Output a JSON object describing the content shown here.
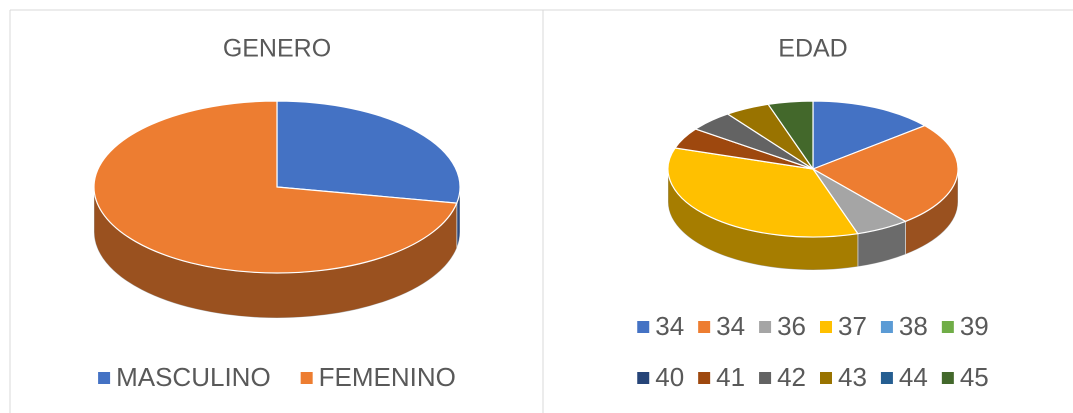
{
  "chart_data": [
    {
      "type": "pie3d",
      "title": "GENERO",
      "categories": [
        "MASCULINO",
        "FEMENINO"
      ],
      "values": [
        28,
        72
      ],
      "colors": [
        "#4472c4",
        "#ed7d31"
      ]
    },
    {
      "type": "pie3d",
      "title": "EDAD",
      "categories": [
        "34",
        "34",
        "36",
        "37",
        "38",
        "39",
        "40",
        "41",
        "42",
        "43",
        "44",
        "45"
      ],
      "values": [
        14,
        25,
        6,
        35,
        0,
        0,
        0,
        5,
        5,
        5,
        0,
        5
      ],
      "colors": [
        "#4472c4",
        "#ed7d31",
        "#a5a5a5",
        "#ffc000",
        "#5b9bd5",
        "#70ad47",
        "#264478",
        "#9e480e",
        "#636363",
        "#997300",
        "#255e91",
        "#43682b"
      ]
    }
  ]
}
